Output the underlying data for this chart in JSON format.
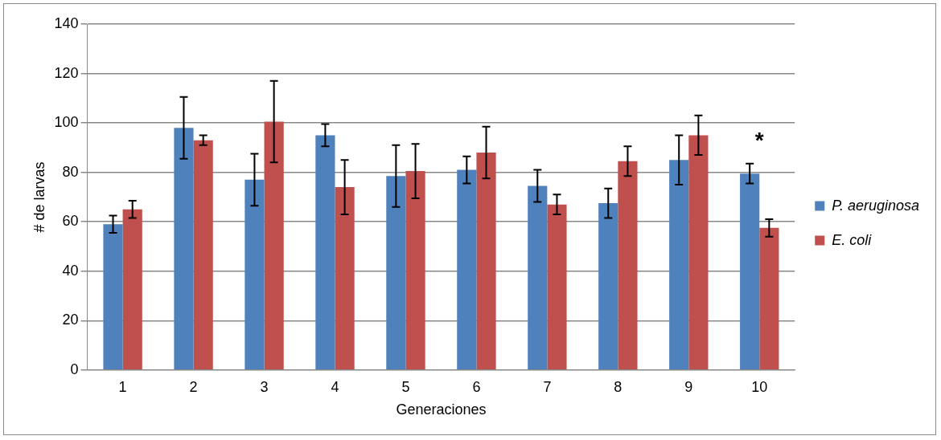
{
  "chart_data": {
    "type": "bar",
    "xlabel": "Generaciones",
    "ylabel": "# de larvas",
    "categories": [
      "1",
      "2",
      "3",
      "4",
      "5",
      "6",
      "7",
      "8",
      "9",
      "10"
    ],
    "series": [
      {
        "name": "P. aeruginosa",
        "color": "#4f81bd",
        "values": [
          59,
          98,
          77,
          95,
          78.5,
          81,
          74.5,
          67.5,
          85,
          79.5
        ],
        "errors": [
          3.5,
          12.5,
          10.5,
          4.5,
          12.5,
          5.5,
          6.5,
          6,
          10,
          4
        ]
      },
      {
        "name": "E. coli",
        "color": "#c0504d",
        "values": [
          65,
          93,
          100.5,
          74,
          80.5,
          88,
          67,
          84.5,
          95,
          57.5
        ],
        "errors": [
          3.5,
          2,
          16.5,
          11,
          11,
          10.5,
          4,
          6,
          8,
          3.5
        ]
      }
    ],
    "ylim": [
      0,
      140
    ],
    "yticks": [
      0,
      20,
      40,
      60,
      80,
      100,
      120,
      140
    ],
    "grid": "y",
    "legend": "right",
    "annotations": [
      "*"
    ]
  }
}
